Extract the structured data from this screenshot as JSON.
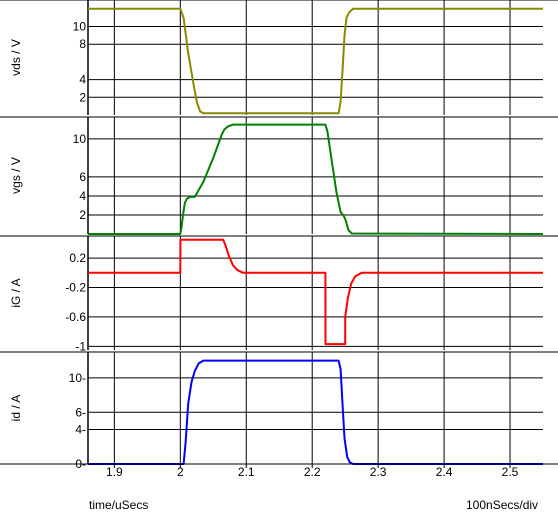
{
  "chart_data": [
    {
      "type": "line",
      "ylabel": "vds / V",
      "ylim": [
        0,
        13
      ],
      "yticks": [
        "2",
        "4",
        "8",
        "10"
      ],
      "ytick_values": [
        2,
        4,
        8,
        10
      ],
      "color": "#8a8a00",
      "series": [
        {
          "x": [
            1.86,
            2.0,
            2.005,
            2.012,
            2.02,
            2.025,
            2.03,
            2.035,
            2.24,
            2.243,
            2.246,
            2.249,
            2.252,
            2.256,
            2.262,
            2.55
          ],
          "y": [
            12,
            12,
            11,
            7,
            3.5,
            1.5,
            0.4,
            0.2,
            0.2,
            1.5,
            5,
            9,
            11,
            11.6,
            12,
            12
          ]
        }
      ]
    },
    {
      "type": "line",
      "ylabel": "vgs / V",
      "ylim": [
        0,
        12.3
      ],
      "yticks": [
        "2",
        "4",
        "6",
        "10"
      ],
      "ytick_values": [
        2,
        4,
        6,
        10
      ],
      "color": "#008000",
      "series": [
        {
          "x": [
            1.86,
            2.0,
            2.002,
            2.004,
            2.007,
            2.01,
            2.015,
            2.022,
            2.035,
            2.05,
            2.063,
            2.067,
            2.072,
            2.08,
            2.22,
            2.223,
            2.229,
            2.237,
            2.243,
            2.247,
            2.25,
            2.255,
            2.26,
            2.55
          ],
          "y": [
            0,
            0,
            0.8,
            2,
            3.3,
            3.7,
            3.9,
            3.9,
            5.5,
            8.0,
            10.5,
            11.0,
            11.3,
            11.5,
            11.5,
            10.8,
            8.0,
            4.3,
            2.3,
            2.0,
            1.6,
            0.4,
            0.05,
            0
          ]
        }
      ]
    },
    {
      "type": "line",
      "ylabel": "iG / A",
      "ylim": [
        -1.05,
        0.5
      ],
      "yticks": [
        "-1",
        "-0.6",
        "-0.2",
        "0.2"
      ],
      "ytick_values": [
        -1,
        -0.6,
        -0.2,
        0.2
      ],
      "color": "#ff0000",
      "series": [
        {
          "x": [
            1.86,
            2.0,
            2.0001,
            2.065,
            2.069,
            2.074,
            2.08,
            2.086,
            2.095,
            2.22,
            2.2201,
            2.25,
            2.2501,
            2.254,
            2.259,
            2.265,
            2.275,
            2.55
          ],
          "y": [
            0,
            0,
            0.45,
            0.45,
            0.36,
            0.22,
            0.1,
            0.04,
            0,
            0,
            -0.97,
            -0.97,
            -0.6,
            -0.35,
            -0.15,
            -0.05,
            0,
            0
          ]
        }
      ]
    },
    {
      "type": "line",
      "ylabel": "id / A",
      "ylim": [
        0,
        13
      ],
      "yticks": [
        "0",
        "4",
        "6",
        "10"
      ],
      "ytick_values": [
        0,
        4,
        6,
        10
      ],
      "tick_prefix": "-",
      "color": "#0000ff",
      "series": [
        {
          "x": [
            1.86,
            2.005,
            2.008,
            2.012,
            2.017,
            2.022,
            2.028,
            2.035,
            2.24,
            2.243,
            2.246,
            2.249,
            2.253,
            2.257,
            2.262,
            2.55
          ],
          "y": [
            0,
            0,
            2.5,
            7,
            9.5,
            10.8,
            11.7,
            12,
            12,
            11,
            7,
            3,
            0.8,
            0.2,
            0,
            0
          ]
        }
      ]
    }
  ],
  "x_axis": {
    "xlim": [
      1.86,
      2.55
    ],
    "ticks": [
      "1.9",
      "2",
      "2.1",
      "2.2",
      "2.3",
      "2.4",
      "2.5"
    ],
    "tick_values": [
      1.9,
      2.0,
      2.1,
      2.2,
      2.3,
      2.4,
      2.5
    ],
    "xlabel": "time/uSecs",
    "scale_label": "100nSecs/div"
  },
  "grid": true
}
